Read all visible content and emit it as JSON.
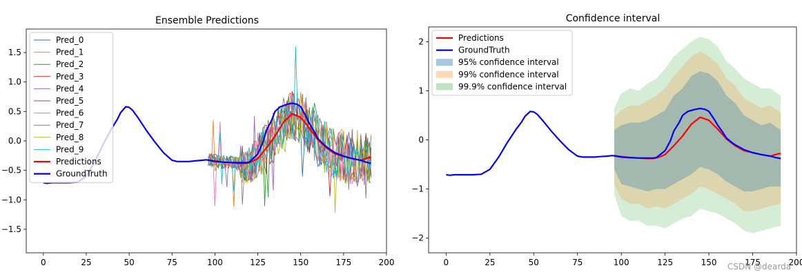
{
  "watermark": "CSDN @dearda",
  "chart_data": [
    {
      "type": "line",
      "title": "Ensemble Predictions",
      "xlabel": "",
      "ylabel": "",
      "xlim": [
        -10,
        200
      ],
      "ylim": [
        -1.9,
        1.9
      ],
      "xticks": [
        0,
        25,
        50,
        75,
        100,
        125,
        150,
        175,
        200
      ],
      "yticks": [
        -1.5,
        -1.0,
        -0.5,
        0.0,
        0.5,
        1.0,
        1.5
      ],
      "ytick_labels": [
        "−1.5",
        "−1.0",
        "−0.5",
        "0.0",
        "0.5",
        "1.0",
        "1.5"
      ],
      "legend_position": "top-left",
      "ensemble": {
        "names": [
          "Pred_0",
          "Pred_1",
          "Pred_2",
          "Pred_3",
          "Pred_4",
          "Pred_5",
          "Pred_6",
          "Pred_7",
          "Pred_8",
          "Pred_9"
        ],
        "colors": [
          "#1f77b4",
          "#ff7f0e",
          "#2ca02c",
          "#d62728",
          "#9467bd",
          "#8c564b",
          "#e377c2",
          "#7f7f7f",
          "#bcbd22",
          "#17becf"
        ],
        "x_start": 96,
        "x_end": 191
      },
      "series": [
        {
          "name": "Predictions",
          "color": "#ff0000",
          "x": [
            96,
            100,
            105,
            110,
            115,
            118,
            121,
            125,
            130,
            135,
            140,
            145,
            150,
            155,
            160,
            165,
            170,
            175,
            180,
            185,
            188,
            190,
            191
          ],
          "values": [
            -0.32,
            -0.34,
            -0.36,
            -0.37,
            -0.38,
            -0.38,
            -0.36,
            -0.3,
            -0.12,
            0.08,
            0.32,
            0.46,
            0.4,
            0.22,
            0.02,
            -0.12,
            -0.22,
            -0.26,
            -0.3,
            -0.33,
            -0.3,
            -0.28,
            -0.28
          ]
        },
        {
          "name": "GroundTruth",
          "color": "#0000ff",
          "x": [
            0,
            2,
            5,
            10,
            15,
            20,
            25,
            30,
            35,
            40,
            43,
            45,
            48,
            50,
            52,
            55,
            60,
            65,
            70,
            75,
            78,
            80,
            85,
            88,
            92,
            95,
            100,
            105,
            110,
            115,
            118,
            120,
            125,
            128,
            130,
            133,
            135,
            138,
            140,
            142,
            145,
            148,
            150,
            153,
            155,
            158,
            160,
            163,
            165,
            170,
            175,
            180,
            185,
            188,
            191
          ],
          "values": [
            -0.71,
            -0.72,
            -0.71,
            -0.71,
            -0.71,
            -0.7,
            -0.6,
            -0.35,
            -0.05,
            0.22,
            0.36,
            0.48,
            0.58,
            0.57,
            0.52,
            0.4,
            0.18,
            -0.02,
            -0.2,
            -0.33,
            -0.35,
            -0.35,
            -0.35,
            -0.34,
            -0.33,
            -0.32,
            -0.35,
            -0.36,
            -0.37,
            -0.37,
            -0.37,
            -0.36,
            -0.22,
            -0.02,
            0.18,
            0.35,
            0.5,
            0.58,
            0.6,
            0.62,
            0.64,
            0.62,
            0.58,
            0.42,
            0.3,
            0.15,
            0.04,
            -0.05,
            -0.1,
            -0.2,
            -0.26,
            -0.3,
            -0.33,
            -0.36,
            -0.38
          ]
        }
      ]
    },
    {
      "type": "line",
      "title": "Confidence interval",
      "xlabel": "",
      "ylabel": "",
      "xlim": [
        -10,
        200
      ],
      "ylim": [
        -2.3,
        2.3
      ],
      "xticks": [
        0,
        25,
        50,
        75,
        100,
        125,
        150,
        175,
        200
      ],
      "yticks": [
        -2,
        -1,
        0,
        1,
        2
      ],
      "ytick_labels": [
        "−2",
        "−1",
        "0",
        "1",
        "2"
      ],
      "legend_position": "top-left",
      "series": [
        {
          "name": "Predictions",
          "color": "#ff0000",
          "x": [
            96,
            100,
            105,
            110,
            115,
            118,
            121,
            125,
            130,
            135,
            140,
            145,
            150,
            155,
            160,
            165,
            170,
            175,
            180,
            185,
            188,
            190,
            191
          ],
          "values": [
            -0.32,
            -0.34,
            -0.36,
            -0.37,
            -0.38,
            -0.38,
            -0.36,
            -0.3,
            -0.12,
            0.08,
            0.32,
            0.46,
            0.4,
            0.22,
            0.02,
            -0.12,
            -0.22,
            -0.26,
            -0.3,
            -0.33,
            -0.3,
            -0.28,
            -0.28
          ]
        },
        {
          "name": "GroundTruth",
          "color": "#0000ff",
          "x": [
            0,
            2,
            5,
            10,
            15,
            20,
            25,
            30,
            35,
            40,
            43,
            45,
            48,
            50,
            52,
            55,
            60,
            65,
            70,
            75,
            78,
            80,
            85,
            88,
            92,
            95,
            100,
            105,
            110,
            115,
            118,
            120,
            125,
            128,
            130,
            133,
            135,
            138,
            140,
            142,
            145,
            148,
            150,
            153,
            155,
            158,
            160,
            163,
            165,
            170,
            175,
            180,
            185,
            188,
            191
          ],
          "values": [
            -0.71,
            -0.72,
            -0.71,
            -0.71,
            -0.71,
            -0.7,
            -0.6,
            -0.35,
            -0.05,
            0.22,
            0.36,
            0.48,
            0.58,
            0.57,
            0.52,
            0.4,
            0.18,
            -0.02,
            -0.2,
            -0.33,
            -0.35,
            -0.35,
            -0.35,
            -0.34,
            -0.33,
            -0.32,
            -0.35,
            -0.36,
            -0.37,
            -0.37,
            -0.37,
            -0.36,
            -0.22,
            -0.02,
            0.18,
            0.35,
            0.5,
            0.58,
            0.6,
            0.62,
            0.64,
            0.62,
            0.58,
            0.42,
            0.3,
            0.15,
            0.04,
            -0.05,
            -0.1,
            -0.2,
            -0.26,
            -0.3,
            -0.33,
            -0.36,
            -0.38
          ]
        }
      ],
      "bands": [
        {
          "name": "95% confidence interval",
          "color": "#1f77b4",
          "opacity": 0.3,
          "x": [
            96,
            100,
            105,
            110,
            115,
            120,
            125,
            130,
            135,
            140,
            145,
            150,
            155,
            160,
            165,
            170,
            175,
            180,
            185,
            191
          ],
          "upper": [
            0.2,
            0.3,
            0.35,
            0.35,
            0.4,
            0.5,
            0.6,
            0.9,
            1.05,
            1.3,
            1.4,
            1.35,
            1.2,
            0.9,
            0.75,
            0.5,
            0.4,
            0.3,
            0.35,
            0.2
          ],
          "lower": [
            -0.6,
            -0.9,
            -0.95,
            -1.0,
            -1.05,
            -1.0,
            -1.0,
            -0.9,
            -0.8,
            -0.7,
            -0.55,
            -0.6,
            -0.7,
            -0.85,
            -0.95,
            -1.05,
            -1.05,
            -1.0,
            -0.95,
            -0.95
          ]
        },
        {
          "name": "99% confidence interval",
          "color": "#ff7f0e",
          "opacity": 0.2,
          "x": [
            96,
            100,
            105,
            110,
            115,
            120,
            125,
            130,
            135,
            140,
            145,
            150,
            155,
            160,
            165,
            170,
            175,
            180,
            185,
            191
          ],
          "upper": [
            0.45,
            0.6,
            0.7,
            0.7,
            0.8,
            0.9,
            1.05,
            1.3,
            1.5,
            1.7,
            1.8,
            1.7,
            1.55,
            1.25,
            1.1,
            0.85,
            0.75,
            0.65,
            0.7,
            0.55
          ],
          "lower": [
            -0.9,
            -1.2,
            -1.3,
            -1.3,
            -1.4,
            -1.35,
            -1.4,
            -1.3,
            -1.2,
            -1.1,
            -0.95,
            -1.0,
            -1.1,
            -1.2,
            -1.3,
            -1.45,
            -1.45,
            -1.4,
            -1.35,
            -1.3
          ]
        },
        {
          "name": "99.9% confidence interval",
          "color": "#2ca02c",
          "opacity": 0.2,
          "x": [
            96,
            100,
            105,
            110,
            115,
            120,
            125,
            130,
            135,
            140,
            145,
            150,
            155,
            160,
            165,
            170,
            175,
            180,
            185,
            191
          ],
          "upper": [
            0.65,
            0.95,
            1.05,
            1.0,
            1.15,
            1.25,
            1.45,
            1.7,
            1.85,
            2.0,
            2.1,
            2.05,
            1.9,
            1.6,
            1.45,
            1.25,
            1.15,
            1.05,
            1.05,
            0.9
          ],
          "lower": [
            -1.1,
            -1.55,
            -1.65,
            -1.65,
            -1.75,
            -1.75,
            -1.8,
            -1.7,
            -1.6,
            -1.55,
            -1.4,
            -1.45,
            -1.5,
            -1.6,
            -1.7,
            -1.85,
            -1.9,
            -1.85,
            -1.8,
            -1.75
          ]
        }
      ]
    }
  ]
}
